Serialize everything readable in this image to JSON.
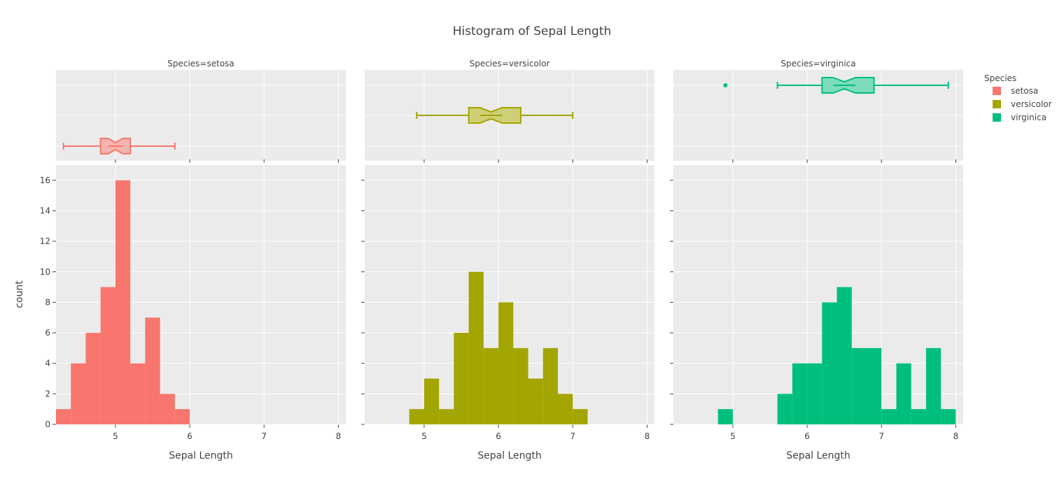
{
  "chart_data": {
    "type": "bar",
    "title": "Histogram of Sepal Length",
    "xlabel": "Sepal Length",
    "ylabel": "count",
    "xlim": [
      4.2,
      8.1
    ],
    "ylim": [
      0,
      17
    ],
    "x_ticks": [
      5,
      6,
      7,
      8
    ],
    "y_ticks": [
      0,
      2,
      4,
      6,
      8,
      10,
      12,
      14,
      16
    ],
    "bin_width": 0.2,
    "grid": true,
    "legend": {
      "title": "Species",
      "placement": "top-right"
    },
    "facets": [
      {
        "label": "Species=setosa",
        "name": "setosa",
        "color": "#F8766D",
        "box_fill": "#F5B5AF",
        "bins": [
          {
            "x0": 4.2,
            "count": 1
          },
          {
            "x0": 4.4,
            "count": 4
          },
          {
            "x0": 4.6,
            "count": 6
          },
          {
            "x0": 4.8,
            "count": 9
          },
          {
            "x0": 5.0,
            "count": 16
          },
          {
            "x0": 5.2,
            "count": 4
          },
          {
            "x0": 5.4,
            "count": 7
          },
          {
            "x0": 5.6,
            "count": 2
          },
          {
            "x0": 5.8,
            "count": 1
          }
        ],
        "box": {
          "min": 4.3,
          "q1": 4.8,
          "median": 5.0,
          "q3": 5.2,
          "max": 5.8,
          "notch_low": 4.9,
          "notch_high": 5.1,
          "outliers": []
        }
      },
      {
        "label": "Species=versicolor",
        "name": "versicolor",
        "color": "#A3A500",
        "box_fill": "#CFCF78",
        "bins": [
          {
            "x0": 4.8,
            "count": 1
          },
          {
            "x0": 5.0,
            "count": 3
          },
          {
            "x0": 5.2,
            "count": 1
          },
          {
            "x0": 5.4,
            "count": 6
          },
          {
            "x0": 5.6,
            "count": 10
          },
          {
            "x0": 5.8,
            "count": 5
          },
          {
            "x0": 6.0,
            "count": 8
          },
          {
            "x0": 6.2,
            "count": 5
          },
          {
            "x0": 6.4,
            "count": 3
          },
          {
            "x0": 6.6,
            "count": 5
          },
          {
            "x0": 6.8,
            "count": 2
          },
          {
            "x0": 7.0,
            "count": 1
          }
        ],
        "box": {
          "min": 4.9,
          "q1": 5.6,
          "median": 5.9,
          "q3": 6.3,
          "max": 7.0,
          "notch_low": 5.75,
          "notch_high": 6.05,
          "outliers": []
        }
      },
      {
        "label": "Species=virginica",
        "name": "virginica",
        "color": "#00BF7D",
        "box_fill": "#7DDDBA",
        "bins": [
          {
            "x0": 4.8,
            "count": 1
          },
          {
            "x0": 5.6,
            "count": 2
          },
          {
            "x0": 5.8,
            "count": 4
          },
          {
            "x0": 6.0,
            "count": 4
          },
          {
            "x0": 6.2,
            "count": 8
          },
          {
            "x0": 6.4,
            "count": 9
          },
          {
            "x0": 6.6,
            "count": 5
          },
          {
            "x0": 6.8,
            "count": 5
          },
          {
            "x0": 7.0,
            "count": 1
          },
          {
            "x0": 7.2,
            "count": 4
          },
          {
            "x0": 7.4,
            "count": 1
          },
          {
            "x0": 7.6,
            "count": 5
          },
          {
            "x0": 7.8,
            "count": 1
          }
        ],
        "box": {
          "min": 5.6,
          "q1": 6.2,
          "median": 6.5,
          "q3": 6.9,
          "max": 7.9,
          "notch_low": 6.35,
          "notch_high": 6.65,
          "outliers": [
            4.9
          ]
        }
      }
    ]
  }
}
